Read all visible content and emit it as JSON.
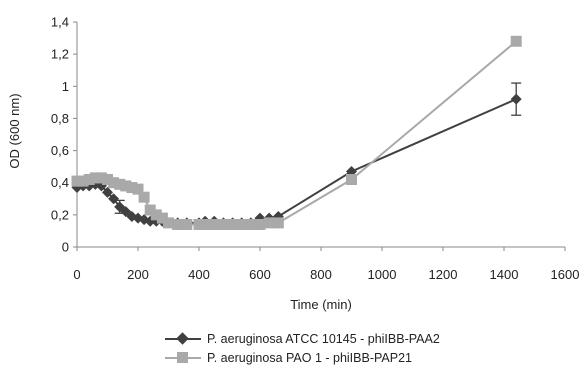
{
  "chart_data": {
    "type": "line",
    "xlabel": "Time (min)",
    "ylabel": "OD (600 nm)",
    "xlim": [
      0,
      1600
    ],
    "ylim": [
      0,
      1.4
    ],
    "x_ticks": [
      "0",
      "200",
      "400",
      "600",
      "800",
      "1000",
      "1200",
      "1400",
      "1600"
    ],
    "y_ticks": [
      "0",
      "0,2",
      "0,4",
      "0,6",
      "0,8",
      "1",
      "1,2",
      "1,4"
    ],
    "legend_position": "bottom",
    "grid": false,
    "series": [
      {
        "name": "P. aeruginosa ATCC 10145 - phiIBB-PAA2",
        "color": "#404040",
        "marker": "diamond",
        "points": [
          [
            0,
            0.37
          ],
          [
            20,
            0.38
          ],
          [
            40,
            0.38
          ],
          [
            60,
            0.39
          ],
          [
            80,
            0.38
          ],
          [
            100,
            0.34
          ],
          [
            120,
            0.3
          ],
          [
            140,
            0.25
          ],
          [
            160,
            0.22
          ],
          [
            180,
            0.19
          ],
          [
            200,
            0.18
          ],
          [
            220,
            0.17
          ],
          [
            240,
            0.16
          ],
          [
            260,
            0.16
          ],
          [
            280,
            0.16
          ],
          [
            300,
            0.15
          ],
          [
            330,
            0.15
          ],
          [
            360,
            0.15
          ],
          [
            400,
            0.15
          ],
          [
            420,
            0.16
          ],
          [
            450,
            0.16
          ],
          [
            480,
            0.15
          ],
          [
            510,
            0.15
          ],
          [
            540,
            0.15
          ],
          [
            570,
            0.15
          ],
          [
            600,
            0.18
          ],
          [
            630,
            0.18
          ],
          [
            660,
            0.19
          ],
          [
            900,
            0.47
          ],
          [
            1440,
            0.92
          ]
        ],
        "error": [
          [
            1440,
            0.1
          ],
          [
            140,
            0.04
          ]
        ]
      },
      {
        "name": "P. aeruginosa PAO 1 - phiIBB-PAP21",
        "color": "#a9a9a9",
        "marker": "square",
        "points": [
          [
            0,
            0.41
          ],
          [
            20,
            0.41
          ],
          [
            40,
            0.42
          ],
          [
            60,
            0.43
          ],
          [
            80,
            0.43
          ],
          [
            100,
            0.42
          ],
          [
            120,
            0.4
          ],
          [
            140,
            0.39
          ],
          [
            160,
            0.38
          ],
          [
            180,
            0.37
          ],
          [
            200,
            0.36
          ],
          [
            220,
            0.31
          ],
          [
            240,
            0.23
          ],
          [
            260,
            0.2
          ],
          [
            280,
            0.18
          ],
          [
            300,
            0.15
          ],
          [
            330,
            0.14
          ],
          [
            360,
            0.14
          ],
          [
            400,
            0.14
          ],
          [
            420,
            0.14
          ],
          [
            450,
            0.14
          ],
          [
            480,
            0.14
          ],
          [
            510,
            0.14
          ],
          [
            540,
            0.14
          ],
          [
            570,
            0.14
          ],
          [
            600,
            0.14
          ],
          [
            630,
            0.15
          ],
          [
            660,
            0.15
          ],
          [
            900,
            0.42
          ],
          [
            1440,
            1.28
          ]
        ],
        "error": []
      }
    ]
  }
}
